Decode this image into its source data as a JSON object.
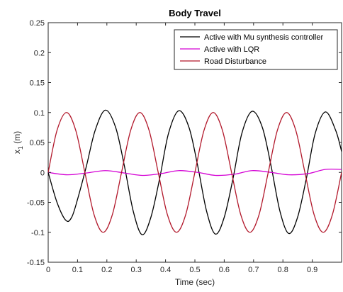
{
  "chart_data": {
    "type": "line",
    "title": "Body Travel",
    "xlabel": "Time (sec)",
    "ylabel_main": "x",
    "ylabel_sub": "1",
    "ylabel_unit": " (m)",
    "xlim": [
      0,
      1
    ],
    "ylim": [
      -0.15,
      0.25
    ],
    "x_ticks": [
      0,
      0.1,
      0.2,
      0.3,
      0.4,
      0.5,
      0.6,
      0.7,
      0.8,
      0.9
    ],
    "x_tick_labels": [
      "0",
      "0.1",
      "0.2",
      "0.3",
      "0.4",
      "0.5",
      "0.6",
      "0.7",
      "0.8",
      "0.9"
    ],
    "y_ticks": [
      -0.15,
      -0.1,
      -0.05,
      0,
      0.05,
      0.1,
      0.15,
      0.2,
      0.25
    ],
    "y_tick_labels": [
      "-0.15",
      "-0.1",
      "-0.05",
      "0",
      "0.05",
      "0.1",
      "0.15",
      "0.2",
      "0.25"
    ],
    "grid": false,
    "legend_position": "top-right",
    "series": [
      {
        "name": "Active with Mu synthesis controller",
        "color": "#000000",
        "x": [
          0,
          0.03,
          0.06,
          0.08,
          0.1,
          0.13,
          0.16,
          0.195,
          0.23,
          0.26,
          0.29,
          0.32,
          0.35,
          0.38,
          0.41,
          0.445,
          0.48,
          0.51,
          0.54,
          0.57,
          0.6,
          0.63,
          0.66,
          0.695,
          0.73,
          0.76,
          0.79,
          0.82,
          0.85,
          0.88,
          0.91,
          0.945,
          0.98,
          1.0
        ],
        "y": [
          0,
          -0.05,
          -0.08,
          -0.075,
          -0.045,
          0.01,
          0.07,
          0.104,
          0.075,
          0.01,
          -0.065,
          -0.104,
          -0.075,
          -0.01,
          0.065,
          0.103,
          0.075,
          0.01,
          -0.065,
          -0.103,
          -0.075,
          -0.01,
          0.065,
          0.102,
          0.075,
          0.01,
          -0.065,
          -0.102,
          -0.075,
          -0.01,
          0.065,
          0.101,
          0.07,
          0.035
        ]
      },
      {
        "name": "Active with LQR",
        "color": "#d400d4",
        "x": [
          0,
          0.065,
          0.13,
          0.195,
          0.26,
          0.32,
          0.385,
          0.445,
          0.51,
          0.57,
          0.635,
          0.695,
          0.76,
          0.82,
          0.885,
          0.945,
          1.0
        ],
        "y": [
          0,
          -0.004,
          -0.001,
          0.003,
          -0.001,
          -0.005,
          -0.002,
          0.003,
          0.0,
          -0.005,
          -0.003,
          0.003,
          0.0,
          -0.004,
          -0.002,
          0.005,
          0.005
        ]
      },
      {
        "name": "Road Disturbance",
        "color": "#b2182b",
        "x": [
          0,
          0.03,
          0.0625,
          0.094,
          0.125,
          0.156,
          0.1875,
          0.219,
          0.25,
          0.281,
          0.3125,
          0.344,
          0.375,
          0.406,
          0.4375,
          0.469,
          0.5,
          0.531,
          0.5625,
          0.594,
          0.625,
          0.656,
          0.6875,
          0.719,
          0.75,
          0.781,
          0.8125,
          0.844,
          0.875,
          0.906,
          0.9375,
          0.969,
          1.0
        ],
        "y": [
          0,
          0.07,
          0.1,
          0.07,
          0,
          -0.07,
          -0.1,
          -0.07,
          0,
          0.07,
          0.1,
          0.07,
          0,
          -0.07,
          -0.1,
          -0.07,
          0,
          0.07,
          0.1,
          0.07,
          0,
          -0.07,
          -0.1,
          -0.07,
          0,
          0.07,
          0.1,
          0.07,
          0,
          -0.07,
          -0.1,
          -0.07,
          0
        ]
      }
    ]
  }
}
